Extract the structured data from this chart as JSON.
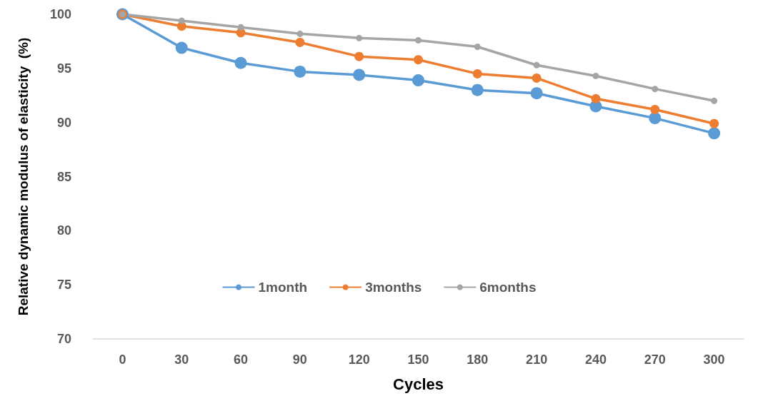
{
  "chart_data": {
    "type": "line",
    "xlabel": "Cycles",
    "ylabel": "Relative dynamic modulus of elasticity  (%)",
    "categories": [
      "0",
      "30",
      "60",
      "90",
      "120",
      "150",
      "180",
      "210",
      "240",
      "270",
      "300"
    ],
    "series": [
      {
        "name": "1month",
        "color": "#5b9bd5",
        "values": [
          100,
          96.9,
          95.5,
          94.7,
          94.4,
          93.9,
          93.0,
          92.7,
          91.5,
          90.4,
          89.0
        ]
      },
      {
        "name": "3months",
        "color": "#ed7d31",
        "values": [
          100,
          98.9,
          98.3,
          97.4,
          96.1,
          95.8,
          94.5,
          94.1,
          92.2,
          91.2,
          89.9
        ]
      },
      {
        "name": "6months",
        "color": "#a5a5a5",
        "values": [
          100,
          99.4,
          98.8,
          98.2,
          97.8,
          97.6,
          97.0,
          95.3,
          94.3,
          93.1,
          92.0
        ]
      }
    ],
    "ylim": [
      70,
      100
    ],
    "yticks": [
      70,
      75,
      80,
      85,
      90,
      95,
      100
    ],
    "grid": false,
    "legend": "center",
    "marker": "circle",
    "line_style": "solid"
  }
}
